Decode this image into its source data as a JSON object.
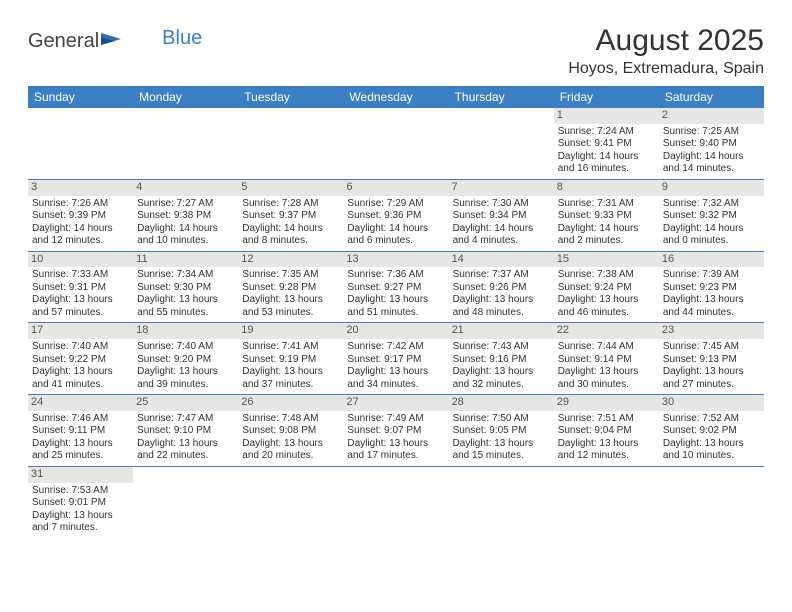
{
  "logo": {
    "general": "General",
    "blue": "Blue"
  },
  "title": "August 2025",
  "location": "Hoyos, Extremadura, Spain",
  "colors": {
    "header_bg": "#3b7fc4",
    "header_text": "#ffffff",
    "daynum_bg": "#e6e6e6",
    "rule": "#3b7fc4"
  },
  "weekdays": [
    "Sunday",
    "Monday",
    "Tuesday",
    "Wednesday",
    "Thursday",
    "Friday",
    "Saturday"
  ],
  "weeks": [
    [
      {
        "n": "",
        "sr": "",
        "ss": "",
        "dl": ""
      },
      {
        "n": "",
        "sr": "",
        "ss": "",
        "dl": ""
      },
      {
        "n": "",
        "sr": "",
        "ss": "",
        "dl": ""
      },
      {
        "n": "",
        "sr": "",
        "ss": "",
        "dl": ""
      },
      {
        "n": "",
        "sr": "",
        "ss": "",
        "dl": ""
      },
      {
        "n": "1",
        "sr": "Sunrise: 7:24 AM",
        "ss": "Sunset: 9:41 PM",
        "dl": "Daylight: 14 hours and 16 minutes."
      },
      {
        "n": "2",
        "sr": "Sunrise: 7:25 AM",
        "ss": "Sunset: 9:40 PM",
        "dl": "Daylight: 14 hours and 14 minutes."
      }
    ],
    [
      {
        "n": "3",
        "sr": "Sunrise: 7:26 AM",
        "ss": "Sunset: 9:39 PM",
        "dl": "Daylight: 14 hours and 12 minutes."
      },
      {
        "n": "4",
        "sr": "Sunrise: 7:27 AM",
        "ss": "Sunset: 9:38 PM",
        "dl": "Daylight: 14 hours and 10 minutes."
      },
      {
        "n": "5",
        "sr": "Sunrise: 7:28 AM",
        "ss": "Sunset: 9:37 PM",
        "dl": "Daylight: 14 hours and 8 minutes."
      },
      {
        "n": "6",
        "sr": "Sunrise: 7:29 AM",
        "ss": "Sunset: 9:36 PM",
        "dl": "Daylight: 14 hours and 6 minutes."
      },
      {
        "n": "7",
        "sr": "Sunrise: 7:30 AM",
        "ss": "Sunset: 9:34 PM",
        "dl": "Daylight: 14 hours and 4 minutes."
      },
      {
        "n": "8",
        "sr": "Sunrise: 7:31 AM",
        "ss": "Sunset: 9:33 PM",
        "dl": "Daylight: 14 hours and 2 minutes."
      },
      {
        "n": "9",
        "sr": "Sunrise: 7:32 AM",
        "ss": "Sunset: 9:32 PM",
        "dl": "Daylight: 14 hours and 0 minutes."
      }
    ],
    [
      {
        "n": "10",
        "sr": "Sunrise: 7:33 AM",
        "ss": "Sunset: 9:31 PM",
        "dl": "Daylight: 13 hours and 57 minutes."
      },
      {
        "n": "11",
        "sr": "Sunrise: 7:34 AM",
        "ss": "Sunset: 9:30 PM",
        "dl": "Daylight: 13 hours and 55 minutes."
      },
      {
        "n": "12",
        "sr": "Sunrise: 7:35 AM",
        "ss": "Sunset: 9:28 PM",
        "dl": "Daylight: 13 hours and 53 minutes."
      },
      {
        "n": "13",
        "sr": "Sunrise: 7:36 AM",
        "ss": "Sunset: 9:27 PM",
        "dl": "Daylight: 13 hours and 51 minutes."
      },
      {
        "n": "14",
        "sr": "Sunrise: 7:37 AM",
        "ss": "Sunset: 9:26 PM",
        "dl": "Daylight: 13 hours and 48 minutes."
      },
      {
        "n": "15",
        "sr": "Sunrise: 7:38 AM",
        "ss": "Sunset: 9:24 PM",
        "dl": "Daylight: 13 hours and 46 minutes."
      },
      {
        "n": "16",
        "sr": "Sunrise: 7:39 AM",
        "ss": "Sunset: 9:23 PM",
        "dl": "Daylight: 13 hours and 44 minutes."
      }
    ],
    [
      {
        "n": "17",
        "sr": "Sunrise: 7:40 AM",
        "ss": "Sunset: 9:22 PM",
        "dl": "Daylight: 13 hours and 41 minutes."
      },
      {
        "n": "18",
        "sr": "Sunrise: 7:40 AM",
        "ss": "Sunset: 9:20 PM",
        "dl": "Daylight: 13 hours and 39 minutes."
      },
      {
        "n": "19",
        "sr": "Sunrise: 7:41 AM",
        "ss": "Sunset: 9:19 PM",
        "dl": "Daylight: 13 hours and 37 minutes."
      },
      {
        "n": "20",
        "sr": "Sunrise: 7:42 AM",
        "ss": "Sunset: 9:17 PM",
        "dl": "Daylight: 13 hours and 34 minutes."
      },
      {
        "n": "21",
        "sr": "Sunrise: 7:43 AM",
        "ss": "Sunset: 9:16 PM",
        "dl": "Daylight: 13 hours and 32 minutes."
      },
      {
        "n": "22",
        "sr": "Sunrise: 7:44 AM",
        "ss": "Sunset: 9:14 PM",
        "dl": "Daylight: 13 hours and 30 minutes."
      },
      {
        "n": "23",
        "sr": "Sunrise: 7:45 AM",
        "ss": "Sunset: 9:13 PM",
        "dl": "Daylight: 13 hours and 27 minutes."
      }
    ],
    [
      {
        "n": "24",
        "sr": "Sunrise: 7:46 AM",
        "ss": "Sunset: 9:11 PM",
        "dl": "Daylight: 13 hours and 25 minutes."
      },
      {
        "n": "25",
        "sr": "Sunrise: 7:47 AM",
        "ss": "Sunset: 9:10 PM",
        "dl": "Daylight: 13 hours and 22 minutes."
      },
      {
        "n": "26",
        "sr": "Sunrise: 7:48 AM",
        "ss": "Sunset: 9:08 PM",
        "dl": "Daylight: 13 hours and 20 minutes."
      },
      {
        "n": "27",
        "sr": "Sunrise: 7:49 AM",
        "ss": "Sunset: 9:07 PM",
        "dl": "Daylight: 13 hours and 17 minutes."
      },
      {
        "n": "28",
        "sr": "Sunrise: 7:50 AM",
        "ss": "Sunset: 9:05 PM",
        "dl": "Daylight: 13 hours and 15 minutes."
      },
      {
        "n": "29",
        "sr": "Sunrise: 7:51 AM",
        "ss": "Sunset: 9:04 PM",
        "dl": "Daylight: 13 hours and 12 minutes."
      },
      {
        "n": "30",
        "sr": "Sunrise: 7:52 AM",
        "ss": "Sunset: 9:02 PM",
        "dl": "Daylight: 13 hours and 10 minutes."
      }
    ],
    [
      {
        "n": "31",
        "sr": "Sunrise: 7:53 AM",
        "ss": "Sunset: 9:01 PM",
        "dl": "Daylight: 13 hours and 7 minutes."
      },
      {
        "n": "",
        "sr": "",
        "ss": "",
        "dl": ""
      },
      {
        "n": "",
        "sr": "",
        "ss": "",
        "dl": ""
      },
      {
        "n": "",
        "sr": "",
        "ss": "",
        "dl": ""
      },
      {
        "n": "",
        "sr": "",
        "ss": "",
        "dl": ""
      },
      {
        "n": "",
        "sr": "",
        "ss": "",
        "dl": ""
      },
      {
        "n": "",
        "sr": "",
        "ss": "",
        "dl": ""
      }
    ]
  ]
}
